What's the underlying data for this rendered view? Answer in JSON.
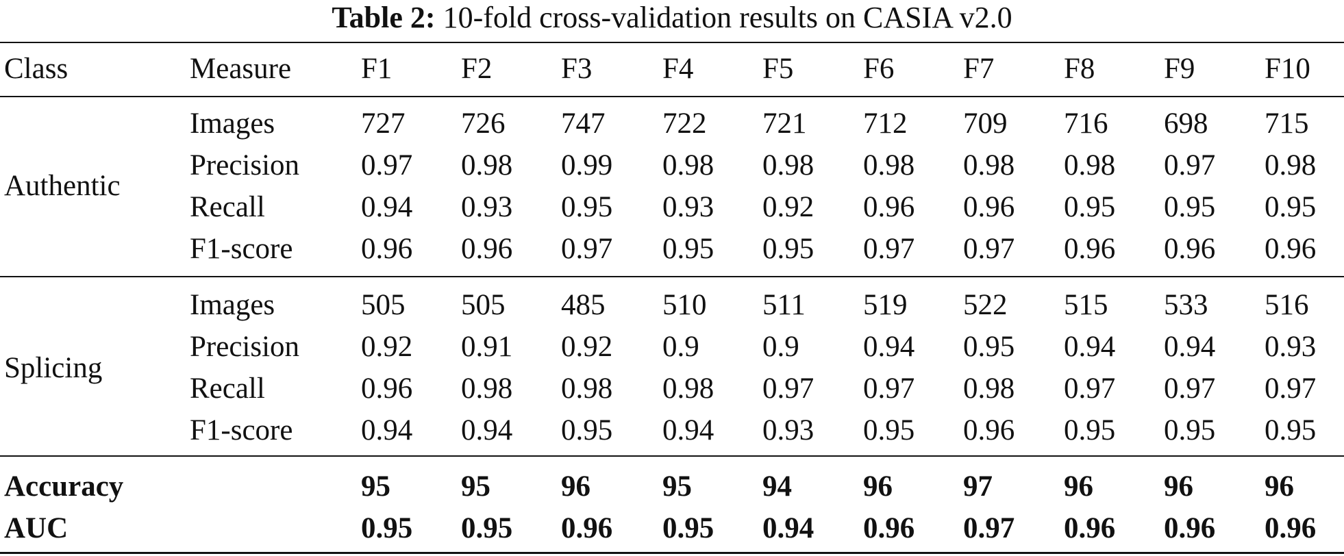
{
  "caption": {
    "label": "Table 2:",
    "text": "10-fold cross-validation results on CASIA v2.0"
  },
  "header": {
    "class": "Class",
    "measure": "Measure",
    "folds": [
      "F1",
      "F2",
      "F3",
      "F4",
      "F5",
      "F6",
      "F7",
      "F8",
      "F9",
      "F10"
    ]
  },
  "groups": [
    {
      "class": "Authentic",
      "rows": [
        {
          "measure": "Images",
          "values": [
            "727",
            "726",
            "747",
            "722",
            "721",
            "712",
            "709",
            "716",
            "698",
            "715"
          ]
        },
        {
          "measure": "Precision",
          "values": [
            "0.97",
            "0.98",
            "0.99",
            "0.98",
            "0.98",
            "0.98",
            "0.98",
            "0.98",
            "0.97",
            "0.98"
          ]
        },
        {
          "measure": "Recall",
          "values": [
            "0.94",
            "0.93",
            "0.95",
            "0.93",
            "0.92",
            "0.96",
            "0.96",
            "0.95",
            "0.95",
            "0.95"
          ]
        },
        {
          "measure": "F1-score",
          "values": [
            "0.96",
            "0.96",
            "0.97",
            "0.95",
            "0.95",
            "0.97",
            "0.97",
            "0.96",
            "0.96",
            "0.96"
          ]
        }
      ]
    },
    {
      "class": "Splicing",
      "rows": [
        {
          "measure": "Images",
          "values": [
            "505",
            "505",
            "485",
            "510",
            "511",
            "519",
            "522",
            "515",
            "533",
            "516"
          ]
        },
        {
          "measure": "Precision",
          "values": [
            "0.92",
            "0.91",
            "0.92",
            "0.9",
            "0.9",
            "0.94",
            "0.95",
            "0.94",
            "0.94",
            "0.93"
          ]
        },
        {
          "measure": "Recall",
          "values": [
            "0.96",
            "0.98",
            "0.98",
            "0.98",
            "0.97",
            "0.97",
            "0.98",
            "0.97",
            "0.97",
            "0.97"
          ]
        },
        {
          "measure": "F1-score",
          "values": [
            "0.94",
            "0.94",
            "0.95",
            "0.94",
            "0.93",
            "0.95",
            "0.96",
            "0.95",
            "0.95",
            "0.95"
          ]
        }
      ]
    }
  ],
  "summary": [
    {
      "label": "Accuracy",
      "values": [
        "95",
        "95",
        "96",
        "95",
        "94",
        "96",
        "97",
        "96",
        "96",
        "96"
      ]
    },
    {
      "label": "AUC",
      "values": [
        "0.95",
        "0.95",
        "0.96",
        "0.95",
        "0.94",
        "0.96",
        "0.97",
        "0.96",
        "0.96",
        "0.96"
      ]
    }
  ]
}
